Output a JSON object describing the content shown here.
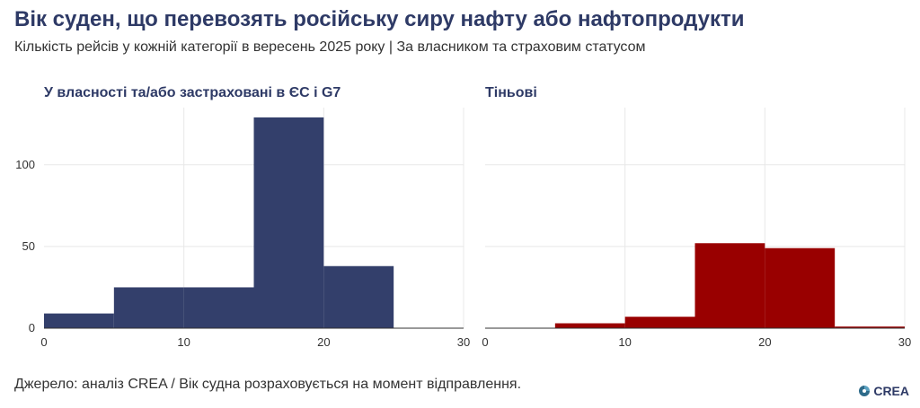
{
  "title": "Вік суден, що перевозять російську сиру нафту або нафтопродукти",
  "subtitle": "Кількість рейсів у кожній категорії в вересень 2025 року | За власником та страховим статусом",
  "footer": "Джерело: аналіз CREA / Вік судна розраховується на момент відправлення.",
  "logo_text": "CREA",
  "colors": {
    "title": "#2e3a66",
    "g7": "#333f6b",
    "shadow": "#990000"
  },
  "chart_data": [
    {
      "type": "histogram",
      "title": "У власності та/або застраховані в ЄС і G7",
      "color": "#333f6b",
      "xlim": [
        0,
        30
      ],
      "ylim": [
        0,
        135
      ],
      "xticks": [
        0,
        10,
        20,
        30
      ],
      "yticks": [
        0,
        50,
        100
      ],
      "bins": [
        {
          "x0": 0,
          "x1": 5,
          "value": 9
        },
        {
          "x0": 5,
          "x1": 10,
          "value": 25
        },
        {
          "x0": 10,
          "x1": 15,
          "value": 25
        },
        {
          "x0": 15,
          "x1": 20,
          "value": 129
        },
        {
          "x0": 20,
          "x1": 25,
          "value": 38
        },
        {
          "x0": 25,
          "x1": 30,
          "value": 0
        }
      ]
    },
    {
      "type": "histogram",
      "title": "Тіньові",
      "color": "#990000",
      "xlim": [
        0,
        30
      ],
      "ylim": [
        0,
        135
      ],
      "xticks": [
        0,
        10,
        20,
        30
      ],
      "yticks": [
        0,
        50,
        100
      ],
      "bins": [
        {
          "x0": 0,
          "x1": 5,
          "value": 0
        },
        {
          "x0": 5,
          "x1": 10,
          "value": 3
        },
        {
          "x0": 10,
          "x1": 15,
          "value": 7
        },
        {
          "x0": 15,
          "x1": 20,
          "value": 52
        },
        {
          "x0": 20,
          "x1": 25,
          "value": 49
        },
        {
          "x0": 25,
          "x1": 30,
          "value": 1
        }
      ]
    }
  ]
}
